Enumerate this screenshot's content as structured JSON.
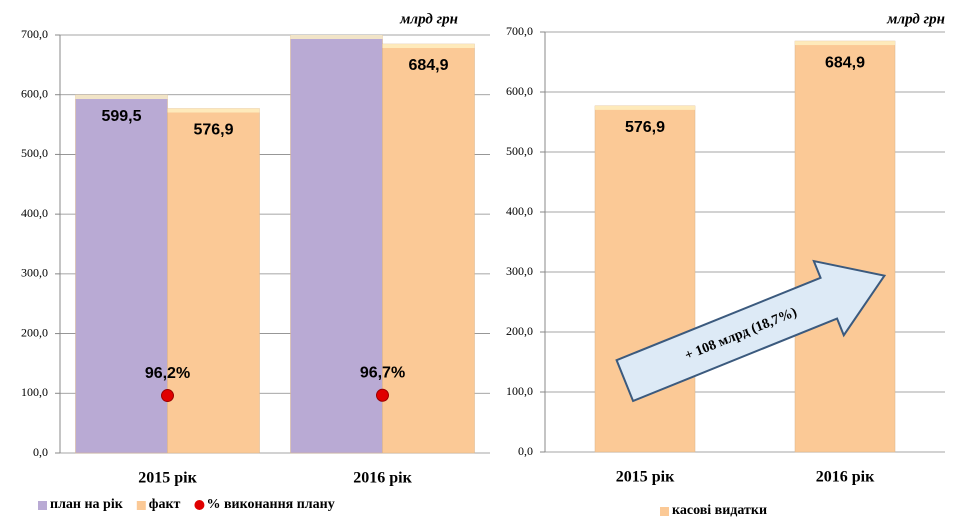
{
  "chart_data": [
    {
      "type": "bar",
      "unit": "млрд грн",
      "categories": [
        "2015 рік",
        "2016 рік"
      ],
      "ylim": [
        0,
        700
      ],
      "yticks": [
        {
          "value": 0,
          "label": "0,0"
        },
        {
          "value": 100,
          "label": "100,0"
        },
        {
          "value": 200,
          "label": "200,0"
        },
        {
          "value": 300,
          "label": "300,0"
        },
        {
          "value": 400,
          "label": "400,0"
        },
        {
          "value": 500,
          "label": "500,0"
        },
        {
          "value": 600,
          "label": "600,0"
        },
        {
          "value": 700,
          "label": "700,0"
        }
      ],
      "grid": true,
      "series": [
        {
          "name": "план на рік",
          "color": "#b9aad4",
          "values": [
            599.5,
            708.3
          ],
          "value_labels": [
            "599,5",
            null
          ]
        },
        {
          "name": "факт",
          "color": "#fbc996",
          "values": [
            576.9,
            684.9
          ],
          "value_labels": [
            "576,9",
            "684,9"
          ]
        },
        {
          "name": "% виконання плану",
          "type": "scatter",
          "color": "#e00000",
          "values": [
            96.2,
            96.7
          ],
          "value_labels": [
            "96,2%",
            "96,7%"
          ]
        }
      ]
    },
    {
      "type": "bar",
      "unit": "млрд  грн",
      "categories": [
        "2015 рік",
        "2016 рік"
      ],
      "ylim": [
        0,
        700
      ],
      "yticks": [
        {
          "value": 0,
          "label": "0,0"
        },
        {
          "value": 100,
          "label": "100,0"
        },
        {
          "value": 200,
          "label": "200,0"
        },
        {
          "value": 300,
          "label": "300,0"
        },
        {
          "value": 400,
          "label": "400,0"
        },
        {
          "value": 500,
          "label": "500,0"
        },
        {
          "value": 600,
          "label": "600,0"
        },
        {
          "value": 700,
          "label": "700,0"
        }
      ],
      "grid": true,
      "annotation": "+ 108 млрд (18,7%)",
      "series": [
        {
          "name": "касові видатки",
          "color": "#fbc996",
          "values": [
            576.9,
            684.9
          ],
          "value_labels": [
            "576,9",
            "684,9"
          ]
        }
      ]
    }
  ]
}
